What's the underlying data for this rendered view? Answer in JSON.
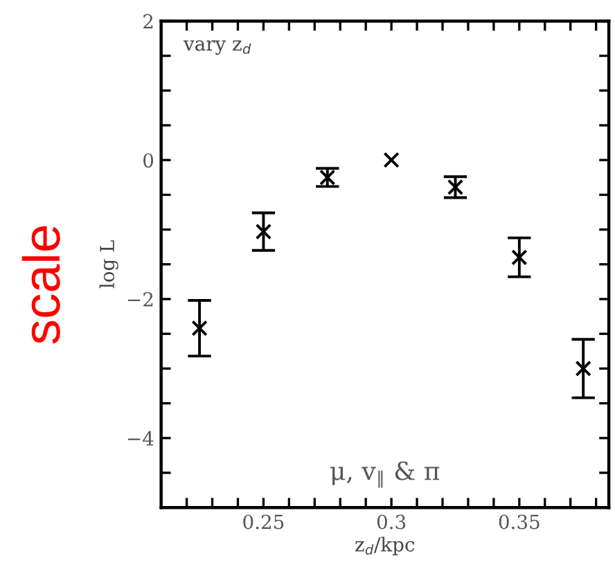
{
  "chart_data": {
    "type": "scatter",
    "xlabel": "z$_{d}$/kpc",
    "ylabel": "log L",
    "annotations": [
      "vary z$_{d}$",
      "μ, v$_{∥}$ & π",
      "scale"
    ],
    "x": [
      0.225,
      0.25,
      0.275,
      0.3,
      0.325,
      0.35,
      0.375
    ],
    "series": [
      {
        "color": "#000000",
        "values": [
          -2.42,
          -1.03,
          -0.25,
          0,
          -0.39,
          -1.4,
          -3.0
        ],
        "errors": [
          0.4,
          0.27,
          0.13,
          null,
          0.15,
          0.28,
          0.42
        ]
      }
    ],
    "marker": "cross",
    "grid": false,
    "legend": false,
    "xlim": [
      0.21,
      0.385
    ],
    "ylim": [
      -5,
      2
    ],
    "xticks": [
      {
        "value": 0.22,
        "label": null
      },
      {
        "value": 0.23,
        "label": null
      },
      {
        "value": 0.24,
        "label": null
      },
      {
        "value": 0.25,
        "label": "0.25"
      },
      {
        "value": 0.26,
        "label": null
      },
      {
        "value": 0.27,
        "label": null
      },
      {
        "value": 0.28,
        "label": null
      },
      {
        "value": 0.29,
        "label": null
      },
      {
        "value": 0.3,
        "label": "0.3"
      },
      {
        "value": 0.31,
        "label": null
      },
      {
        "value": 0.32,
        "label": null
      },
      {
        "value": 0.33,
        "label": null
      },
      {
        "value": 0.34,
        "label": null
      },
      {
        "value": 0.35,
        "label": "0.35"
      },
      {
        "value": 0.36,
        "label": null
      },
      {
        "value": 0.37,
        "label": null
      },
      {
        "value": 0.38,
        "label": null
      }
    ],
    "yticks": [
      {
        "value": -5,
        "label": null
      },
      {
        "value": -4.5,
        "label": null
      },
      {
        "value": -4,
        "label": "−4"
      },
      {
        "value": -3.5,
        "label": null
      },
      {
        "value": -3,
        "label": null
      },
      {
        "value": -2.5,
        "label": null
      },
      {
        "value": -2,
        "label": "−2"
      },
      {
        "value": -1.5,
        "label": null
      },
      {
        "value": -1,
        "label": null
      },
      {
        "value": -0.5,
        "label": null
      },
      {
        "value": 0,
        "label": "0"
      },
      {
        "value": 0.5,
        "label": null
      },
      {
        "value": 1,
        "label": null
      },
      {
        "value": 1.5,
        "label": null
      },
      {
        "value": 2,
        "label": "2"
      }
    ]
  }
}
